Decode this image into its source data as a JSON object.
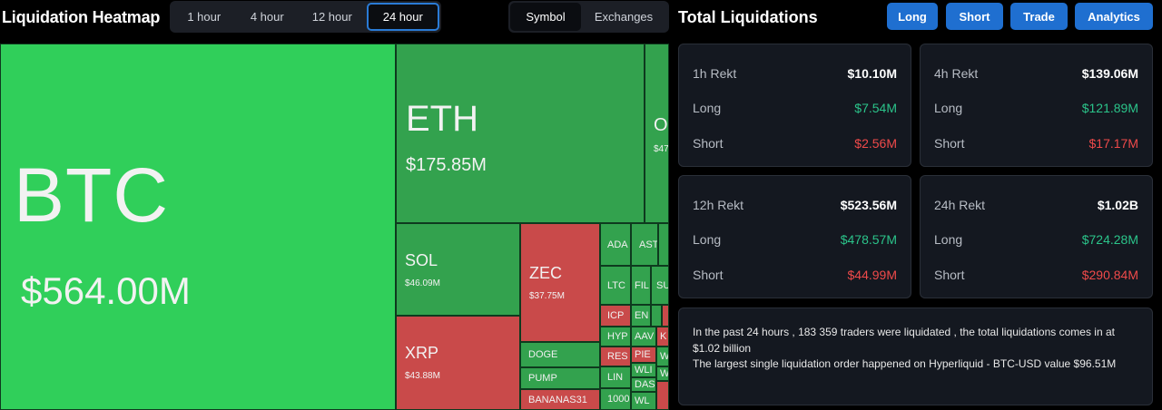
{
  "header": {
    "title": "Liquidation Heatmap",
    "time_tabs": [
      {
        "label": "1 hour"
      },
      {
        "label": "4 hour"
      },
      {
        "label": "12 hour"
      },
      {
        "label": "24 hour",
        "active": true
      }
    ],
    "view_tabs": [
      {
        "label": "Symbol",
        "active": true
      },
      {
        "label": "Exchanges"
      }
    ]
  },
  "totals": {
    "title": "Total Liquidations",
    "buttons": [
      {
        "label": "Long"
      },
      {
        "label": "Short"
      },
      {
        "label": "Trade"
      },
      {
        "label": "Analytics"
      }
    ],
    "accent_color": "#1f6fd0",
    "cards": [
      {
        "label": "1h Rekt",
        "total": "$10.10M",
        "long_label": "Long",
        "long": "$7.54M",
        "short_label": "Short",
        "short": "$2.56M"
      },
      {
        "label": "4h Rekt",
        "total": "$139.06M",
        "long_label": "Long",
        "long": "$121.89M",
        "short_label": "Short",
        "short": "$17.17M"
      },
      {
        "label": "12h Rekt",
        "total": "$523.56M",
        "long_label": "Long",
        "long": "$478.57M",
        "short_label": "Short",
        "short": "$44.99M"
      },
      {
        "label": "24h Rekt",
        "total": "$1.02B",
        "long_label": "Long",
        "long": "$724.28M",
        "short_label": "Short",
        "short": "$290.84M"
      }
    ],
    "summary_line1": "In the past 24 hours , 183 359 traders were liquidated , the total liquidations comes in at $1.02 billion",
    "summary_line2": "The largest single liquidation order happened on Hyperliquid - BTC-USD value $96.51M"
  },
  "heatmap": {
    "btc": {
      "symbol": "BTC",
      "value": "$564.00M"
    },
    "eth": {
      "symbol": "ETH",
      "value": "$175.85M"
    },
    "other": {
      "symbol": "O",
      "value": "$47"
    },
    "sol": {
      "symbol": "SOL",
      "value": "$46.09M"
    },
    "zec": {
      "symbol": "ZEC",
      "value": "$37.75M"
    },
    "xrp": {
      "symbol": "XRP",
      "value": "$43.88M"
    },
    "doge": "DOGE",
    "pump": "PUMP",
    "bananas": "BANANAS31",
    "ada": "ADA",
    "ast": "AST",
    "ltc": "LTC",
    "fil": "FIL",
    "su": "SU",
    "icp": "ICP",
    "en": "EN",
    "hyp": "HYP",
    "aav": "AAV",
    "res": "RES",
    "pie": "PIE",
    "lin": "LIN",
    "wl1": "WLI",
    "das": "DAS",
    "wl2": "WL",
    "k": "K",
    "w1": "W",
    "w2": "W",
    "n1000": "1000",
    "green_color": "#30cf5a",
    "red_color": "#c94a4a"
  }
}
